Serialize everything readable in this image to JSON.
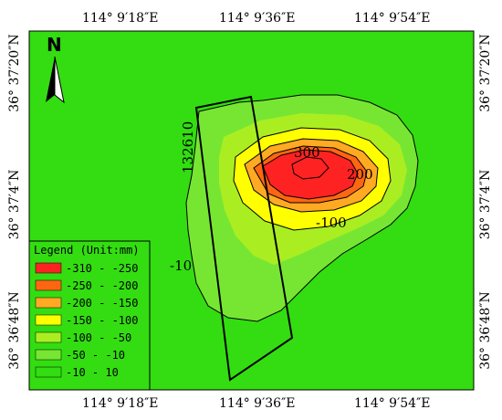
{
  "map": {
    "north_arrow_label": "N",
    "top_labels": [
      "114° 9′18″E",
      "114° 9′36″E",
      "114° 9′54″E"
    ],
    "bottom_labels": [
      "114° 9′18″E",
      "114° 9′36″E",
      "114° 9′54″E"
    ],
    "left_labels": [
      "36° 37′20″N",
      "36° 37′4″N",
      "36° 36′48″N"
    ],
    "right_labels": [
      "36° 37′20″N",
      "36° 37′4″N",
      "36° 36′48″N"
    ],
    "panel_label": "132610",
    "contour_labels": [
      "300",
      "200",
      "-100",
      "-10"
    ],
    "colors": {
      "background": "#33dd11",
      "c1": "#ff2222",
      "c2": "#ff6611",
      "c3": "#ffaa22",
      "c4": "#ffff00",
      "c5": "#aaee22",
      "c6": "#77e633",
      "c7": "#33dd11"
    }
  },
  "legend": {
    "title": "Legend (Unit:mm)",
    "items": [
      {
        "label": "-310 - -250",
        "color": "#ff2222"
      },
      {
        "label": "-250 - -200",
        "color": "#ff6611"
      },
      {
        "label": "-200 - -150",
        "color": "#ffaa22"
      },
      {
        "label": "-150 - -100",
        "color": "#ffff00"
      },
      {
        "label": "-100 - -50",
        "color": "#aaee22"
      },
      {
        "label": "-50 - -10",
        "color": "#77e633"
      },
      {
        "label": "-10 - 10",
        "color": "#33dd11"
      }
    ]
  }
}
